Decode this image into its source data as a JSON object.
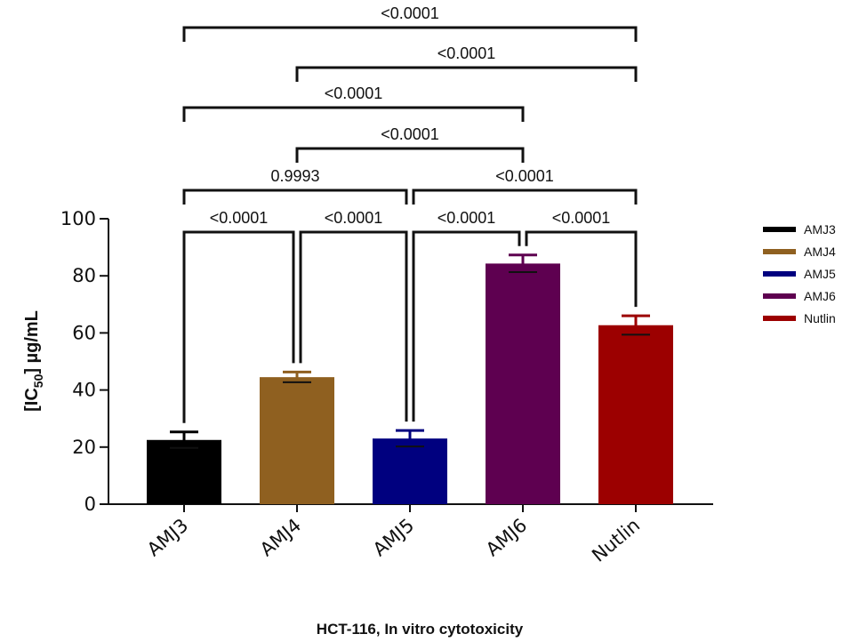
{
  "chart_data": {
    "type": "bar",
    "title": "HCT-116, In vitro cytotoxicity",
    "ylabel": {
      "prefix": "[IC",
      "subscript": "50",
      "suffix": "] µg/mL"
    },
    "xlabel": "",
    "ylim": [
      0,
      100
    ],
    "yticks": [
      0,
      20,
      40,
      60,
      80,
      100
    ],
    "categories": [
      "AMJ3",
      "AMJ4",
      "AMJ5",
      "AMJ6",
      "Nutlin"
    ],
    "values": [
      22.5,
      44.5,
      23.0,
      84.3,
      62.7
    ],
    "errors": [
      2.8,
      1.8,
      2.8,
      3.0,
      3.3
    ],
    "colors": [
      "#000000",
      "#8f6020",
      "#00007f",
      "#5e0050",
      "#9c0000"
    ],
    "legend": {
      "position": "right",
      "entries": [
        "AMJ3",
        "AMJ4",
        "AMJ5",
        "AMJ6",
        "Nutlin"
      ]
    },
    "comparisons": [
      {
        "from": "AMJ3",
        "to": "AMJ4",
        "label": "<0.0001"
      },
      {
        "from": "AMJ4",
        "to": "AMJ5",
        "label": "<0.0001"
      },
      {
        "from": "AMJ5",
        "to": "AMJ6",
        "label": "<0.0001"
      },
      {
        "from": "AMJ6",
        "to": "Nutlin",
        "label": "<0.0001"
      },
      {
        "from": "AMJ3",
        "to": "AMJ5",
        "label": "0.9993"
      },
      {
        "from": "AMJ5",
        "to": "Nutlin",
        "label": "<0.0001"
      },
      {
        "from": "AMJ4",
        "to": "AMJ6",
        "label": "<0.0001"
      },
      {
        "from": "AMJ3",
        "to": "AMJ6",
        "label": "<0.0001"
      },
      {
        "from": "AMJ4",
        "to": "Nutlin",
        "label": "<0.0001"
      },
      {
        "from": "AMJ3",
        "to": "Nutlin",
        "label": "<0.0001"
      }
    ]
  }
}
